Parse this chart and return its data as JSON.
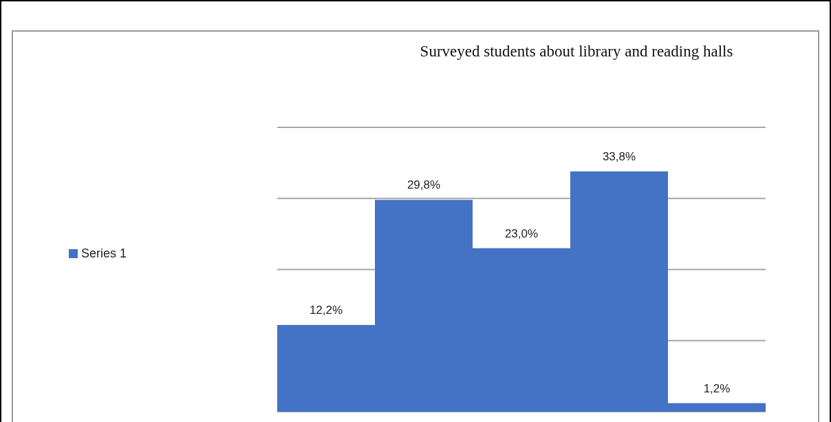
{
  "chart_data": {
    "type": "bar",
    "title": "Surveyed students about library and reading halls",
    "categories": [
      null,
      null,
      null,
      null,
      null
    ],
    "series": [
      {
        "name": "Series 1",
        "color": "#4472c4",
        "values": [
          12.2,
          29.8,
          23.0,
          33.8,
          1.2
        ],
        "value_labels": [
          "12,2%",
          "29,8%",
          "23,0%",
          "33,8%",
          "1,2%"
        ]
      }
    ],
    "ylim": [
      0,
      40
    ],
    "yticks": [
      {
        "value": 0,
        "label": null
      },
      {
        "value": 10,
        "label": null
      },
      {
        "value": 20,
        "label": null
      },
      {
        "value": 30,
        "label": null
      },
      {
        "value": 40,
        "label": null
      }
    ],
    "grid": "y",
    "legend": "left"
  }
}
